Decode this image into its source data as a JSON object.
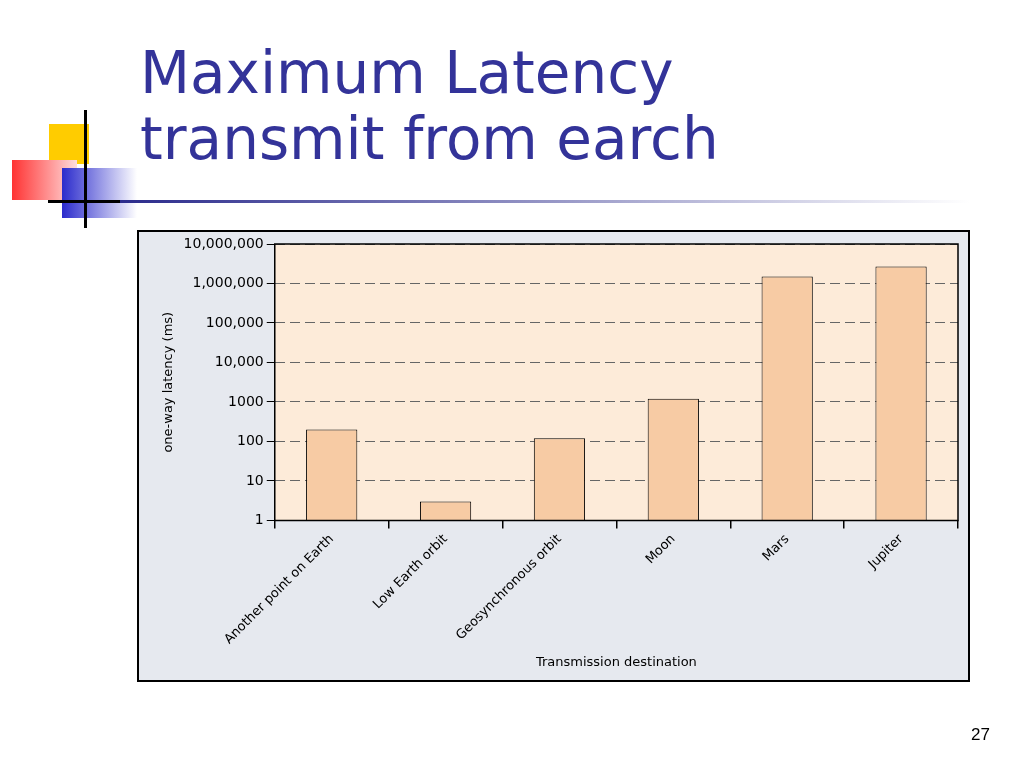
{
  "chart_data": {
    "type": "bar",
    "title": "Maximum Latency transmit from earch",
    "xlabel": "Transmission destination",
    "ylabel": "one-way latency (ms)",
    "categories": [
      "Another point on Earth",
      "Low Earth orbit",
      "Geosynchronous orbit",
      "Moon",
      "Mars",
      "Jupiter"
    ],
    "values": [
      200,
      3,
      120,
      1200,
      1500000,
      2700000
    ],
    "color": "#f7cba4",
    "log": true,
    "ylim": [
      1,
      10000000
    ],
    "yticks": [
      1,
      10,
      100,
      1000,
      {
        "value": 10000,
        "label": "10,000"
      },
      {
        "value": 100000,
        "label": "100,000"
      },
      {
        "value": 1000000,
        "label": "1,000,000"
      },
      {
        "value": 10000000,
        "label": "10,000,000"
      }
    ],
    "grid": "y",
    "legend": false,
    "annotations": [
      "27"
    ]
  }
}
